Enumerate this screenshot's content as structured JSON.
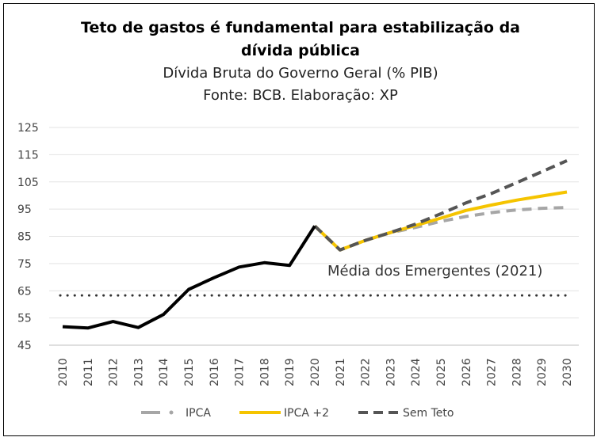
{
  "chart_data": {
    "type": "line",
    "title_line1": "Teto de gastos é fundamental para estabilização da",
    "title_line2": "dívida pública",
    "subtitle_line1": "Dívida Bruta do Governo Geral (% PIB)",
    "subtitle_line2": "Fonte: BCB. Elaboração: XP",
    "ylim": [
      45,
      125
    ],
    "yticks": [
      125,
      115,
      105,
      95,
      85,
      75,
      65,
      55,
      45
    ],
    "x": [
      "2010",
      "2011",
      "2012",
      "2013",
      "2014",
      "2015",
      "2016",
      "2017",
      "2018",
      "2019",
      "2020",
      "2021",
      "2022",
      "2023",
      "2024",
      "2025",
      "2026",
      "2027",
      "2028",
      "2029",
      "2030"
    ],
    "grid": true,
    "legend_position": "bottom",
    "historical": {
      "color": "#000000",
      "values": [
        51.8,
        51.3,
        53.7,
        51.5,
        56.3,
        65.5,
        69.8,
        73.7,
        75.3,
        74.3,
        88.8,
        null,
        null,
        null,
        null,
        null,
        null,
        null,
        null,
        null,
        null
      ]
    },
    "series": [
      {
        "name": "IPCA",
        "color": "#a6a6a6",
        "values": [
          null,
          null,
          null,
          null,
          null,
          null,
          null,
          null,
          null,
          null,
          88.8,
          80.0,
          83.5,
          86.3,
          88.3,
          90.5,
          92.3,
          93.7,
          94.7,
          95.3,
          95.6
        ]
      },
      {
        "name": "IPCA +2",
        "color": "#f5c400",
        "values": [
          null,
          null,
          null,
          null,
          null,
          null,
          null,
          null,
          null,
          null,
          88.8,
          80.0,
          83.5,
          86.4,
          89.0,
          91.7,
          94.5,
          96.5,
          98.3,
          99.8,
          101.3
        ]
      },
      {
        "name": "Sem Teto",
        "color": "#555555",
        "values": [
          null,
          null,
          null,
          null,
          null,
          null,
          null,
          null,
          null,
          null,
          88.8,
          80.0,
          83.5,
          86.4,
          89.5,
          93.3,
          97.3,
          100.7,
          104.7,
          108.7,
          112.8
        ]
      }
    ],
    "reference_line": {
      "label": "Média dos Emergentes (2021)",
      "value": 63.3,
      "color": "#333333"
    }
  }
}
